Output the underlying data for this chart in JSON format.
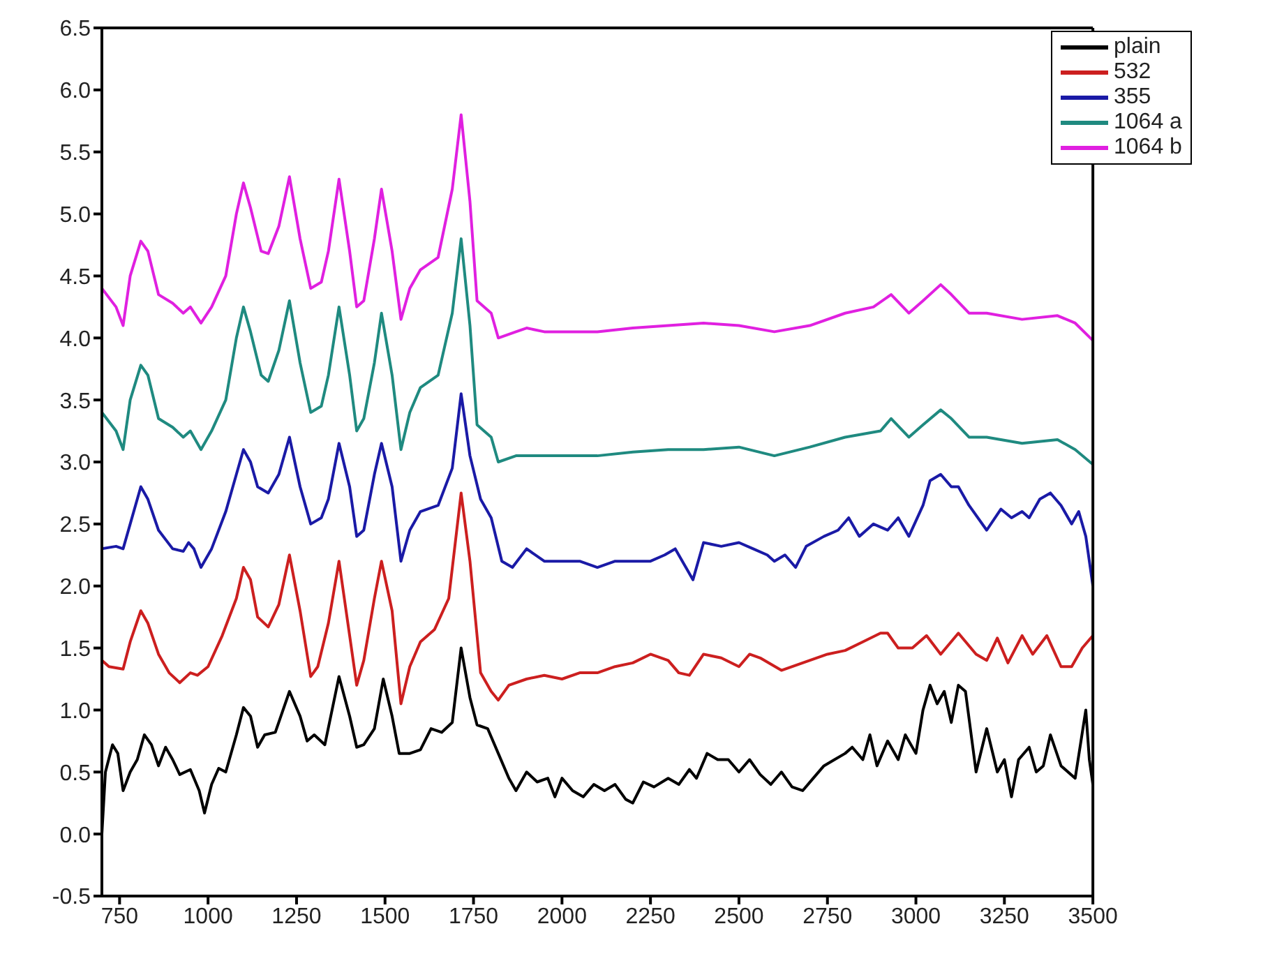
{
  "chart_data": {
    "type": "line",
    "xlim": [
      700,
      3500
    ],
    "xticks": [
      750,
      1000,
      1250,
      1500,
      1750,
      2000,
      2250,
      2500,
      2750,
      3000,
      3250,
      3500
    ],
    "ylim": [
      -0.5,
      6.5
    ],
    "yticks": [
      -0.5,
      {
        "value": 0,
        "label": "0.0"
      },
      0.5,
      {
        "value": 1,
        "label": "1.0"
      },
      1.5,
      {
        "value": 2,
        "label": "2.0"
      },
      2.5,
      {
        "value": 3,
        "label": "3.0"
      },
      3.5,
      {
        "value": 4,
        "label": "4.0"
      },
      4.5,
      {
        "value": 5,
        "label": "5.0"
      },
      5.5,
      {
        "value": 6,
        "label": "6.0"
      },
      6.5
    ],
    "grid": false,
    "legend": "top right",
    "marker": "none",
    "line_style": "solid",
    "series": [
      {
        "name": "plain",
        "color": "#000000",
        "x": [
          700,
          710,
          730,
          745,
          760,
          780,
          800,
          820,
          840,
          860,
          880,
          900,
          920,
          950,
          975,
          990,
          1010,
          1030,
          1050,
          1080,
          1100,
          1120,
          1140,
          1160,
          1190,
          1230,
          1260,
          1280,
          1300,
          1330,
          1370,
          1400,
          1420,
          1440,
          1470,
          1495,
          1520,
          1540,
          1570,
          1600,
          1630,
          1660,
          1690,
          1715,
          1740,
          1760,
          1790,
          1820,
          1850,
          1870,
          1900,
          1930,
          1960,
          1980,
          2000,
          2030,
          2060,
          2090,
          2120,
          2150,
          2180,
          2200,
          2230,
          2260,
          2300,
          2330,
          2360,
          2380,
          2410,
          2440,
          2470,
          2500,
          2530,
          2560,
          2590,
          2620,
          2650,
          2680,
          2710,
          2740,
          2770,
          2800,
          2820,
          2850,
          2870,
          2890,
          2920,
          2950,
          2970,
          3000,
          3020,
          3040,
          3060,
          3080,
          3100,
          3120,
          3140,
          3170,
          3200,
          3230,
          3250,
          3270,
          3290,
          3320,
          3340,
          3360,
          3380,
          3410,
          3450,
          3480,
          3490,
          3500
        ],
        "values": [
          0.0,
          0.5,
          0.72,
          0.65,
          0.35,
          0.5,
          0.6,
          0.8,
          0.72,
          0.55,
          0.7,
          0.6,
          0.48,
          0.52,
          0.35,
          0.17,
          0.4,
          0.53,
          0.5,
          0.8,
          1.02,
          0.95,
          0.7,
          0.8,
          0.82,
          1.15,
          0.95,
          0.75,
          0.8,
          0.72,
          1.27,
          0.95,
          0.7,
          0.72,
          0.85,
          1.25,
          0.95,
          0.65,
          0.65,
          0.68,
          0.85,
          0.82,
          0.9,
          1.5,
          1.1,
          0.88,
          0.85,
          0.65,
          0.45,
          0.35,
          0.5,
          0.42,
          0.45,
          0.3,
          0.45,
          0.35,
          0.3,
          0.4,
          0.35,
          0.4,
          0.28,
          0.25,
          0.42,
          0.38,
          0.45,
          0.4,
          0.52,
          0.45,
          0.65,
          0.6,
          0.6,
          0.5,
          0.6,
          0.48,
          0.4,
          0.5,
          0.38,
          0.35,
          0.45,
          0.55,
          0.6,
          0.65,
          0.7,
          0.6,
          0.8,
          0.55,
          0.75,
          0.6,
          0.8,
          0.65,
          1.0,
          1.2,
          1.05,
          1.15,
          0.9,
          1.2,
          1.15,
          0.5,
          0.85,
          0.5,
          0.6,
          0.3,
          0.6,
          0.7,
          0.5,
          0.55,
          0.8,
          0.55,
          0.45,
          1.0,
          0.6,
          0.4
        ]
      },
      {
        "name": "532",
        "color": "#cc1f1f",
        "x": [
          700,
          720,
          760,
          780,
          810,
          830,
          860,
          890,
          920,
          950,
          970,
          1000,
          1040,
          1080,
          1100,
          1120,
          1140,
          1170,
          1200,
          1230,
          1260,
          1290,
          1310,
          1340,
          1370,
          1400,
          1420,
          1440,
          1470,
          1490,
          1520,
          1545,
          1570,
          1600,
          1640,
          1680,
          1715,
          1740,
          1770,
          1800,
          1820,
          1850,
          1900,
          1950,
          2000,
          2050,
          2100,
          2150,
          2200,
          2250,
          2300,
          2330,
          2360,
          2400,
          2450,
          2500,
          2530,
          2560,
          2620,
          2680,
          2750,
          2800,
          2850,
          2900,
          2920,
          2950,
          2990,
          3030,
          3070,
          3120,
          3170,
          3200,
          3230,
          3260,
          3300,
          3330,
          3370,
          3410,
          3440,
          3470,
          3500
        ],
        "values": [
          1.4,
          1.35,
          1.33,
          1.55,
          1.8,
          1.7,
          1.45,
          1.3,
          1.22,
          1.3,
          1.28,
          1.35,
          1.6,
          1.9,
          2.15,
          2.05,
          1.75,
          1.67,
          1.85,
          2.25,
          1.8,
          1.27,
          1.35,
          1.7,
          2.2,
          1.6,
          1.2,
          1.4,
          1.9,
          2.2,
          1.8,
          1.05,
          1.35,
          1.55,
          1.65,
          1.9,
          2.75,
          2.2,
          1.3,
          1.15,
          1.08,
          1.2,
          1.25,
          1.28,
          1.25,
          1.3,
          1.3,
          1.35,
          1.38,
          1.45,
          1.4,
          1.3,
          1.28,
          1.45,
          1.42,
          1.35,
          1.45,
          1.42,
          1.32,
          1.38,
          1.45,
          1.48,
          1.55,
          1.62,
          1.62,
          1.5,
          1.5,
          1.6,
          1.45,
          1.62,
          1.45,
          1.4,
          1.58,
          1.38,
          1.6,
          1.45,
          1.6,
          1.35,
          1.35,
          1.5,
          1.6
        ]
      },
      {
        "name": "355",
        "color": "#1a1aa6",
        "x": [
          700,
          740,
          760,
          780,
          810,
          830,
          860,
          900,
          930,
          945,
          960,
          980,
          1010,
          1050,
          1080,
          1100,
          1120,
          1140,
          1170,
          1200,
          1230,
          1260,
          1290,
          1320,
          1340,
          1370,
          1400,
          1420,
          1440,
          1470,
          1490,
          1520,
          1545,
          1570,
          1600,
          1650,
          1690,
          1715,
          1740,
          1770,
          1800,
          1830,
          1860,
          1900,
          1950,
          2000,
          2050,
          2100,
          2150,
          2200,
          2250,
          2290,
          2320,
          2350,
          2370,
          2400,
          2450,
          2500,
          2540,
          2580,
          2600,
          2630,
          2660,
          2690,
          2740,
          2780,
          2810,
          2840,
          2880,
          2920,
          2950,
          2980,
          3020,
          3040,
          3070,
          3100,
          3120,
          3150,
          3200,
          3240,
          3270,
          3300,
          3320,
          3350,
          3380,
          3410,
          3440,
          3460,
          3480,
          3500
        ],
        "values": [
          2.3,
          2.32,
          2.3,
          2.5,
          2.8,
          2.7,
          2.45,
          2.3,
          2.28,
          2.35,
          2.3,
          2.15,
          2.3,
          2.6,
          2.9,
          3.1,
          3.0,
          2.8,
          2.75,
          2.9,
          3.2,
          2.8,
          2.5,
          2.55,
          2.7,
          3.15,
          2.8,
          2.4,
          2.45,
          2.9,
          3.15,
          2.8,
          2.2,
          2.45,
          2.6,
          2.65,
          2.95,
          3.55,
          3.05,
          2.7,
          2.55,
          2.2,
          2.15,
          2.3,
          2.2,
          2.2,
          2.2,
          2.15,
          2.2,
          2.2,
          2.2,
          2.25,
          2.3,
          2.15,
          2.05,
          2.35,
          2.32,
          2.35,
          2.3,
          2.25,
          2.2,
          2.25,
          2.15,
          2.32,
          2.4,
          2.45,
          2.55,
          2.4,
          2.5,
          2.45,
          2.55,
          2.4,
          2.65,
          2.85,
          2.9,
          2.8,
          2.8,
          2.65,
          2.45,
          2.62,
          2.55,
          2.6,
          2.55,
          2.7,
          2.75,
          2.65,
          2.5,
          2.6,
          2.4,
          2.0
        ]
      },
      {
        "name": "1064 a",
        "color": "#1f8a80",
        "x": [
          700,
          740,
          760,
          780,
          810,
          830,
          860,
          900,
          930,
          950,
          980,
          1010,
          1050,
          1080,
          1100,
          1120,
          1150,
          1170,
          1200,
          1230,
          1260,
          1290,
          1320,
          1340,
          1370,
          1400,
          1420,
          1440,
          1470,
          1490,
          1520,
          1545,
          1570,
          1600,
          1650,
          1690,
          1715,
          1740,
          1760,
          1800,
          1820,
          1870,
          1950,
          2000,
          2100,
          2200,
          2300,
          2400,
          2500,
          2600,
          2700,
          2800,
          2900,
          2930,
          2980,
          3020,
          3070,
          3100,
          3150,
          3200,
          3300,
          3400,
          3450,
          3500
        ],
        "values": [
          3.4,
          3.25,
          3.1,
          3.5,
          3.78,
          3.7,
          3.35,
          3.28,
          3.2,
          3.25,
          3.1,
          3.25,
          3.5,
          4.0,
          4.25,
          4.05,
          3.7,
          3.65,
          3.9,
          4.3,
          3.8,
          3.4,
          3.45,
          3.7,
          4.25,
          3.7,
          3.25,
          3.35,
          3.8,
          4.2,
          3.7,
          3.1,
          3.4,
          3.6,
          3.7,
          4.2,
          4.8,
          4.1,
          3.3,
          3.2,
          3.0,
          3.05,
          3.05,
          3.05,
          3.05,
          3.08,
          3.1,
          3.1,
          3.12,
          3.05,
          3.12,
          3.2,
          3.25,
          3.35,
          3.2,
          3.3,
          3.42,
          3.35,
          3.2,
          3.2,
          3.15,
          3.18,
          3.1,
          2.98
        ]
      },
      {
        "name": "1064 b",
        "color": "#e020e0",
        "x": [
          700,
          740,
          760,
          780,
          810,
          830,
          860,
          900,
          930,
          950,
          980,
          1010,
          1050,
          1080,
          1100,
          1120,
          1150,
          1170,
          1200,
          1230,
          1260,
          1290,
          1320,
          1340,
          1370,
          1400,
          1420,
          1440,
          1470,
          1490,
          1520,
          1545,
          1570,
          1600,
          1650,
          1690,
          1715,
          1740,
          1760,
          1800,
          1820,
          1870,
          1900,
          1950,
          2100,
          2200,
          2300,
          2400,
          2500,
          2600,
          2700,
          2800,
          2880,
          2930,
          2980,
          3020,
          3070,
          3100,
          3150,
          3200,
          3300,
          3400,
          3450,
          3500
        ],
        "values": [
          4.4,
          4.25,
          4.1,
          4.5,
          4.78,
          4.7,
          4.35,
          4.28,
          4.2,
          4.25,
          4.12,
          4.25,
          4.5,
          5.0,
          5.25,
          5.05,
          4.7,
          4.68,
          4.9,
          5.3,
          4.8,
          4.4,
          4.45,
          4.7,
          5.28,
          4.7,
          4.25,
          4.3,
          4.8,
          5.2,
          4.7,
          4.15,
          4.4,
          4.55,
          4.65,
          5.2,
          5.8,
          5.1,
          4.3,
          4.2,
          4.0,
          4.05,
          4.08,
          4.05,
          4.05,
          4.08,
          4.1,
          4.12,
          4.1,
          4.05,
          4.1,
          4.2,
          4.25,
          4.35,
          4.2,
          4.3,
          4.43,
          4.35,
          4.2,
          4.2,
          4.15,
          4.18,
          4.12,
          3.98
        ]
      }
    ]
  }
}
